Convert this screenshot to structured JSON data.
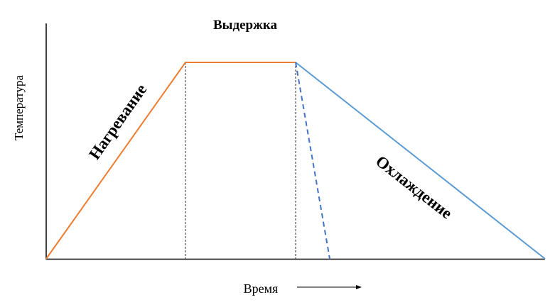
{
  "labels": {
    "hold": "Выдержка",
    "heating": "Нагревание",
    "cooling": "Охлаждение",
    "y_axis": "Температура",
    "x_axis": "Время"
  },
  "colors": {
    "heating": "#ED7D31",
    "cooling": "#5B9BD5",
    "axis": "#000000"
  }
}
